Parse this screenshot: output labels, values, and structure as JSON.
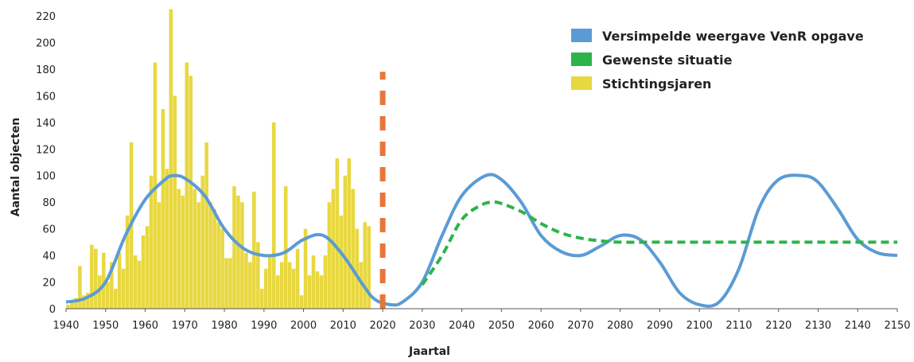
{
  "chart_data": {
    "type": "bar+line",
    "title": "",
    "xlabel": "Jaartal",
    "ylabel": "Aantal objecten",
    "xlim": [
      1940,
      2150
    ],
    "ylim": [
      0,
      220
    ],
    "x_ticks": [
      1940,
      1950,
      1960,
      1970,
      1980,
      1990,
      2000,
      2010,
      2020,
      2030,
      2040,
      2050,
      2060,
      2070,
      2080,
      2090,
      2100,
      2110,
      2120,
      2130,
      2140,
      2150
    ],
    "y_ticks": [
      0,
      20,
      40,
      60,
      80,
      100,
      120,
      140,
      160,
      180,
      200,
      220
    ],
    "grid": false,
    "legend_position": "top-right",
    "series": [
      {
        "name": "Versimpelde weergave VenR opgave",
        "kind": "line",
        "style": "solid-smooth",
        "color": "#5b9bd5",
        "x": [
          1940,
          1945,
          1950,
          1955,
          1960,
          1965,
          1967,
          1970,
          1975,
          1980,
          1985,
          1990,
          1995,
          2000,
          2005,
          2010,
          2015,
          2018,
          2022,
          2025,
          2030,
          2035,
          2040,
          2046,
          2050,
          2055,
          2060,
          2065,
          2070,
          2075,
          2080,
          2085,
          2090,
          2095,
          2100,
          2105,
          2110,
          2115,
          2120,
          2126,
          2130,
          2135,
          2140,
          2145,
          2150
        ],
        "y": [
          5,
          8,
          20,
          55,
          82,
          97,
          100,
          98,
          85,
          60,
          45,
          40,
          42,
          52,
          55,
          40,
          18,
          7,
          3,
          5,
          20,
          55,
          85,
          100,
          97,
          80,
          55,
          43,
          40,
          47,
          55,
          52,
          35,
          12,
          3,
          5,
          30,
          75,
          97,
          100,
          95,
          75,
          52,
          42,
          40
        ]
      },
      {
        "name": "Gewenste situatie",
        "kind": "line",
        "style": "dashed-smooth",
        "color": "#2db34a",
        "x": [
          2030,
          2035,
          2040,
          2045,
          2048,
          2050,
          2055,
          2060,
          2065,
          2070,
          2075,
          2080,
          2090,
          2100,
          2110,
          2120,
          2130,
          2140,
          2150
        ],
        "y": [
          18,
          40,
          67,
          78,
          80,
          79,
          73,
          64,
          57,
          53,
          51,
          50,
          50,
          50,
          50,
          50,
          50,
          50,
          50
        ]
      },
      {
        "name": "Stichtingsjaren",
        "kind": "bar",
        "color": "#e8d840",
        "x": [
          1940,
          1941,
          1942,
          1943,
          1944,
          1945,
          1946,
          1947,
          1948,
          1949,
          1950,
          1951,
          1952,
          1953,
          1954,
          1955,
          1956,
          1957,
          1958,
          1959,
          1960,
          1961,
          1962,
          1963,
          1964,
          1965,
          1966,
          1967,
          1968,
          1969,
          1970,
          1971,
          1972,
          1973,
          1974,
          1975,
          1976,
          1977,
          1978,
          1979,
          1980,
          1981,
          1982,
          1983,
          1984,
          1985,
          1986,
          1987,
          1988,
          1989,
          1990,
          1991,
          1992,
          1993,
          1994,
          1995,
          1996,
          1997,
          1998,
          1999,
          2000,
          2001,
          2002,
          2003,
          2004,
          2005,
          2006,
          2007,
          2008,
          2009,
          2010,
          2011,
          2012,
          2013,
          2014,
          2015,
          2016
        ],
        "values": [
          3,
          5,
          8,
          32,
          10,
          12,
          48,
          45,
          25,
          42,
          20,
          35,
          15,
          42,
          30,
          70,
          125,
          40,
          36,
          55,
          62,
          100,
          185,
          80,
          150,
          105,
          225,
          160,
          90,
          85,
          185,
          175,
          90,
          80,
          100,
          125,
          80,
          75,
          65,
          60,
          38,
          38,
          92,
          85,
          80,
          42,
          35,
          88,
          50,
          15,
          30,
          40,
          140,
          25,
          35,
          92,
          35,
          30,
          45,
          10,
          60,
          25,
          40,
          28,
          25,
          40,
          80,
          90,
          113,
          70,
          100,
          113,
          90,
          60,
          35,
          65,
          62
        ]
      }
    ],
    "annotations": [
      {
        "type": "vertical-dashed-line",
        "x": 2020,
        "y_from": 0,
        "y_to": 178,
        "color": "#e8763a"
      }
    ]
  },
  "legend": {
    "items": [
      {
        "label": "Versimpelde weergave VenR opgave",
        "color": "#5b9bd5"
      },
      {
        "label": "Gewenste situatie",
        "color": "#2db34a"
      },
      {
        "label": "Stichtingsjaren",
        "color": "#e8d840"
      }
    ]
  }
}
